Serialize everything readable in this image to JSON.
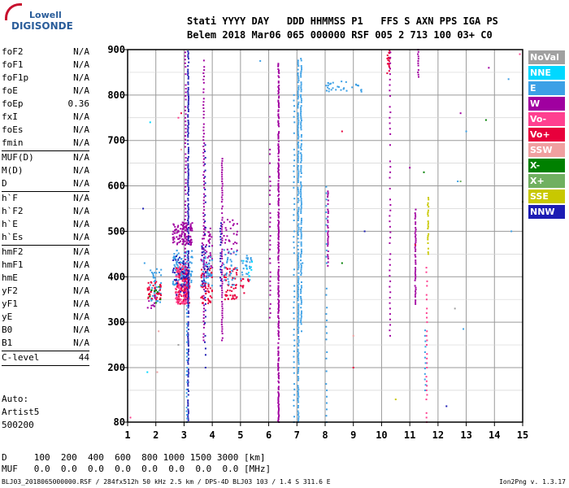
{
  "brand": {
    "line1": "Lowell",
    "line2": "DIGISONDE"
  },
  "header": {
    "line1": "Stati YYYY DAY   DDD HHMMSS P1   FFS S AXN PPS IGA PS",
    "line2": "Belem 2018 Mar06 065 000000 RSF 005 2 713 100 03+ C0"
  },
  "params": [
    {
      "name": "foF2",
      "value": "N/A"
    },
    {
      "name": "foF1",
      "value": "N/A"
    },
    {
      "name": "foF1p",
      "value": "N/A"
    },
    {
      "name": "foE",
      "value": "N/A"
    },
    {
      "name": "foEp",
      "value": "0.36"
    },
    {
      "name": "fxI",
      "value": "N/A"
    },
    {
      "name": "foEs",
      "value": "N/A"
    },
    {
      "name": "fmin",
      "value": "N/A"
    },
    {
      "name": "MUF(D)",
      "value": "N/A"
    },
    {
      "name": "M(D)",
      "value": "N/A"
    },
    {
      "name": "D",
      "value": "N/A"
    },
    {
      "name": "h`F",
      "value": "N/A"
    },
    {
      "name": "h`F2",
      "value": "N/A"
    },
    {
      "name": "h`E",
      "value": "N/A"
    },
    {
      "name": "h`Es",
      "value": "N/A"
    },
    {
      "name": "hmF2",
      "value": "N/A"
    },
    {
      "name": "hmF1",
      "value": "N/A"
    },
    {
      "name": "hmE",
      "value": "N/A"
    },
    {
      "name": "yF2",
      "value": "N/A"
    },
    {
      "name": "yF1",
      "value": "N/A"
    },
    {
      "name": "yE",
      "value": "N/A"
    },
    {
      "name": "B0",
      "value": "N/A"
    },
    {
      "name": "B1",
      "value": "N/A"
    },
    {
      "name": "C-level",
      "value": "44"
    }
  ],
  "auto": {
    "label": "Auto:",
    "program": "Artist5",
    "version": "500200"
  },
  "legend": [
    {
      "label": "NoVal",
      "color": "#a0a0a0"
    },
    {
      "label": "NNE",
      "color": "#00d8ff"
    },
    {
      "label": "E",
      "color": "#3ca0e6"
    },
    {
      "label": "W",
      "color": "#a000a0"
    },
    {
      "label": "Vo-",
      "color": "#ff4090"
    },
    {
      "label": "Vo+",
      "color": "#e8003c"
    },
    {
      "label": "SSW",
      "color": "#f0a0a0"
    },
    {
      "label": "X-",
      "color": "#008000"
    },
    {
      "label": "X+",
      "color": "#70b060"
    },
    {
      "label": "SSE",
      "color": "#c8c800"
    },
    {
      "label": "NNW",
      "color": "#1c1cb4"
    }
  ],
  "bottom": {
    "d_line": "D     100  200  400  600  800 1000 1500 3000 [km]",
    "muf_line": "MUF   0.0  0.0  0.0  0.0  0.0  0.0  0.0  0.0 [MHz]"
  },
  "footer": {
    "left": "BLJ03_2018065000000.RSF / 284fx512h 50 kHz 2.5 km / DPS-4D BLJ03 103 / 1.4 S 311.6 E",
    "right": "Ion2Png v. 1.3.17"
  },
  "chart_data": {
    "type": "scatter",
    "xlim": [
      1,
      15
    ],
    "ylim": [
      80,
      900
    ],
    "x_ticks": [
      1,
      2,
      3,
      4,
      5,
      6,
      7,
      8,
      9,
      10,
      11,
      12,
      13,
      14,
      15
    ],
    "y_ticks": [
      80,
      200,
      300,
      400,
      500,
      600,
      700,
      800,
      900
    ],
    "grid": true,
    "legend_position": "right",
    "clusters": [
      {
        "series": "Vo+",
        "x": [
          2.7,
          3.2
        ],
        "y": [
          340,
          420
        ],
        "n": 160
      },
      {
        "series": "Vo-",
        "x": [
          2.7,
          3.2
        ],
        "y": [
          340,
          430
        ],
        "n": 120
      },
      {
        "series": "W",
        "x": [
          2.6,
          3.3
        ],
        "y": [
          470,
          520
        ],
        "n": 110
      },
      {
        "series": "E",
        "x": [
          2.6,
          3.3
        ],
        "y": [
          380,
          460
        ],
        "n": 90
      },
      {
        "series": "NNW",
        "x": [
          2.6,
          3.2
        ],
        "y": [
          360,
          450
        ],
        "n": 40
      },
      {
        "series": "E",
        "x": [
          1.8,
          2.2
        ],
        "y": [
          340,
          420
        ],
        "n": 40
      },
      {
        "series": "Vo+",
        "x": [
          1.7,
          2.2
        ],
        "y": [
          350,
          390
        ],
        "n": 40
      },
      {
        "series": "X-",
        "x": [
          1.7,
          2.2
        ],
        "y": [
          340,
          380
        ],
        "n": 8
      },
      {
        "series": "W",
        "x": [
          1.7,
          2.0
        ],
        "y": [
          330,
          360
        ],
        "n": 10
      },
      {
        "series": "Vo+",
        "x": [
          3.6,
          4.0
        ],
        "y": [
          340,
          420
        ],
        "n": 60
      },
      {
        "series": "W",
        "x": [
          3.6,
          4.0
        ],
        "y": [
          400,
          520
        ],
        "n": 45
      },
      {
        "series": "E",
        "x": [
          3.6,
          4.0
        ],
        "y": [
          380,
          450
        ],
        "n": 40
      },
      {
        "series": "NNW",
        "x": [
          3.6,
          3.9
        ],
        "y": [
          380,
          480
        ],
        "n": 15
      },
      {
        "series": "Vo+",
        "x": [
          4.4,
          4.9
        ],
        "y": [
          350,
          420
        ],
        "n": 55
      },
      {
        "series": "W",
        "x": [
          4.4,
          4.9
        ],
        "y": [
          450,
          530
        ],
        "n": 30
      },
      {
        "series": "E",
        "x": [
          4.4,
          4.9
        ],
        "y": [
          380,
          460
        ],
        "n": 35
      },
      {
        "series": "E",
        "x": [
          5.0,
          5.4
        ],
        "y": [
          390,
          450
        ],
        "n": 25
      },
      {
        "series": "Vo+",
        "x": [
          5.0,
          5.3
        ],
        "y": [
          360,
          400
        ],
        "n": 12
      },
      {
        "series": "NNE",
        "x": [
          5.1,
          5.5
        ],
        "y": [
          400,
          440
        ],
        "n": 8
      },
      {
        "series": "E",
        "x": [
          8.0,
          9.3
        ],
        "y": [
          805,
          830
        ],
        "n": 30
      },
      {
        "series": "Vo+",
        "x": [
          10.2,
          10.3
        ],
        "y": [
          840,
          900
        ],
        "n": 18
      }
    ],
    "traces": [
      {
        "series": "NNW",
        "x": 3.15,
        "y": [
          80,
          900
        ],
        "step": 4
      },
      {
        "series": "W",
        "x": 3.05,
        "y": [
          350,
          900
        ],
        "step": 8
      },
      {
        "series": "E",
        "x": 3.1,
        "y": [
          80,
          350
        ],
        "step": 8
      },
      {
        "series": "W",
        "x": 3.7,
        "y": [
          260,
          880
        ],
        "step": 7
      },
      {
        "series": "NNW",
        "x": 3.75,
        "y": [
          200,
          700
        ],
        "step": 14
      },
      {
        "series": "W",
        "x": 4.35,
        "y": [
          260,
          660
        ],
        "step": 5
      },
      {
        "series": "NNW",
        "x": 4.3,
        "y": [
          380,
          520
        ],
        "step": 6
      },
      {
        "series": "W",
        "x": 6.35,
        "y": [
          80,
          870
        ],
        "step": 3
      },
      {
        "series": "W",
        "x": 6.05,
        "y": [
          310,
          680
        ],
        "step": 10
      },
      {
        "series": "E",
        "x": 7.05,
        "y": [
          80,
          880
        ],
        "step": 4
      },
      {
        "series": "E",
        "x": 7.15,
        "y": [
          280,
          880
        ],
        "step": 4
      },
      {
        "series": "E",
        "x": 6.9,
        "y": [
          80,
          800
        ],
        "step": 12
      },
      {
        "series": "W",
        "x": 8.1,
        "y": [
          420,
          590
        ],
        "step": 4
      },
      {
        "series": "E",
        "x": 8.05,
        "y": [
          80,
          600
        ],
        "step": 14
      },
      {
        "series": "W",
        "x": 10.3,
        "y": [
          270,
          900
        ],
        "step": 12
      },
      {
        "series": "W",
        "x": 11.2,
        "y": [
          340,
          550
        ],
        "step": 4
      },
      {
        "series": "W",
        "x": 11.3,
        "y": [
          840,
          900
        ],
        "step": 5
      },
      {
        "series": "SSE",
        "x": 11.65,
        "y": [
          450,
          580
        ],
        "step": 4
      },
      {
        "series": "Vo-",
        "x": 11.6,
        "y": [
          80,
          420
        ],
        "step": 10
      },
      {
        "series": "E",
        "x": 11.55,
        "y": [
          150,
          300
        ],
        "step": 12
      }
    ],
    "points": [
      {
        "series": "E",
        "x": 5.7,
        "y": 875
      },
      {
        "series": "E",
        "x": 14.5,
        "y": 835
      },
      {
        "series": "E",
        "x": 14.6,
        "y": 500
      },
      {
        "series": "E",
        "x": 13.0,
        "y": 720
      },
      {
        "series": "E",
        "x": 12.7,
        "y": 610
      },
      {
        "series": "E",
        "x": 12.9,
        "y": 285
      },
      {
        "series": "W",
        "x": 13.8,
        "y": 860
      },
      {
        "series": "W",
        "x": 12.8,
        "y": 760
      },
      {
        "series": "W",
        "x": 11.0,
        "y": 640
      },
      {
        "series": "X-",
        "x": 13.7,
        "y": 745
      },
      {
        "series": "X-",
        "x": 8.6,
        "y": 430
      },
      {
        "series": "X-",
        "x": 11.5,
        "y": 630
      },
      {
        "series": "X+",
        "x": 12.8,
        "y": 610
      },
      {
        "series": "X+",
        "x": 15.0,
        "y": 565
      },
      {
        "series": "NNW",
        "x": 1.55,
        "y": 550
      },
      {
        "series": "NNW",
        "x": 12.3,
        "y": 115
      },
      {
        "series": "NNW",
        "x": 9.4,
        "y": 500
      },
      {
        "series": "Vo-",
        "x": 14.9,
        "y": 890
      },
      {
        "series": "Vo-",
        "x": 2.8,
        "y": 750
      },
      {
        "series": "Vo-",
        "x": 1.1,
        "y": 90
      },
      {
        "series": "Vo+",
        "x": 2.9,
        "y": 760
      },
      {
        "series": "Vo+",
        "x": 8.6,
        "y": 720
      },
      {
        "series": "Vo+",
        "x": 11.2,
        "y": 470
      },
      {
        "series": "Vo+",
        "x": 9.0,
        "y": 200
      },
      {
        "series": "SSW",
        "x": 2.05,
        "y": 190
      },
      {
        "series": "SSW",
        "x": 2.9,
        "y": 680
      },
      {
        "series": "SSW",
        "x": 9.0,
        "y": 270
      },
      {
        "series": "SSW",
        "x": 2.1,
        "y": 280
      },
      {
        "series": "SSE",
        "x": 10.5,
        "y": 130
      },
      {
        "series": "NNE",
        "x": 1.7,
        "y": 190
      },
      {
        "series": "NNE",
        "x": 1.8,
        "y": 740
      },
      {
        "series": "NoVal",
        "x": 2.8,
        "y": 250
      },
      {
        "series": "NoVal",
        "x": 12.6,
        "y": 330
      },
      {
        "series": "E",
        "x": 7.2,
        "y": 430
      },
      {
        "series": "E",
        "x": 1.6,
        "y": 430
      }
    ]
  }
}
